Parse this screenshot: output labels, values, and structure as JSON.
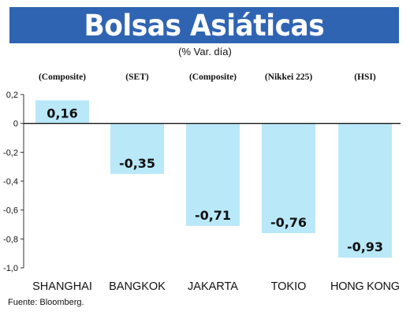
{
  "header": {
    "title": "Bolsas Asiáticas",
    "subtitle": "(% Var. día)"
  },
  "source": "Fuente: Bloomberg.",
  "colors": {
    "title_bar": "#2f64b3",
    "bar_fill": "#b9e8f9",
    "zero_line": "#1a1a1a"
  },
  "chart_data": {
    "type": "bar",
    "categories": [
      "SHANGHAI",
      "BANGKOK",
      "JAKARTA",
      "TOKIO",
      "HONG KONG"
    ],
    "index_labels": [
      "(Composite)",
      "(SET)",
      "(Composite)",
      "(Nikkei 225)",
      "(HSI)"
    ],
    "values": [
      0.16,
      -0.35,
      -0.71,
      -0.76,
      -0.93
    ],
    "value_labels": [
      "0,16",
      "-0,35",
      "-0,71",
      "-0,76",
      "-0,93"
    ],
    "ylim": [
      -1.0,
      0.2
    ],
    "yticks": [
      0.2,
      0,
      -0.2,
      -0.4,
      -0.6,
      -0.8,
      -1.0
    ],
    "ytick_labels": [
      "0,2",
      "0",
      "-0,2",
      "-0,4",
      "-0,6",
      "-0,8",
      "-1,0"
    ],
    "grid": false,
    "legend": "none"
  }
}
